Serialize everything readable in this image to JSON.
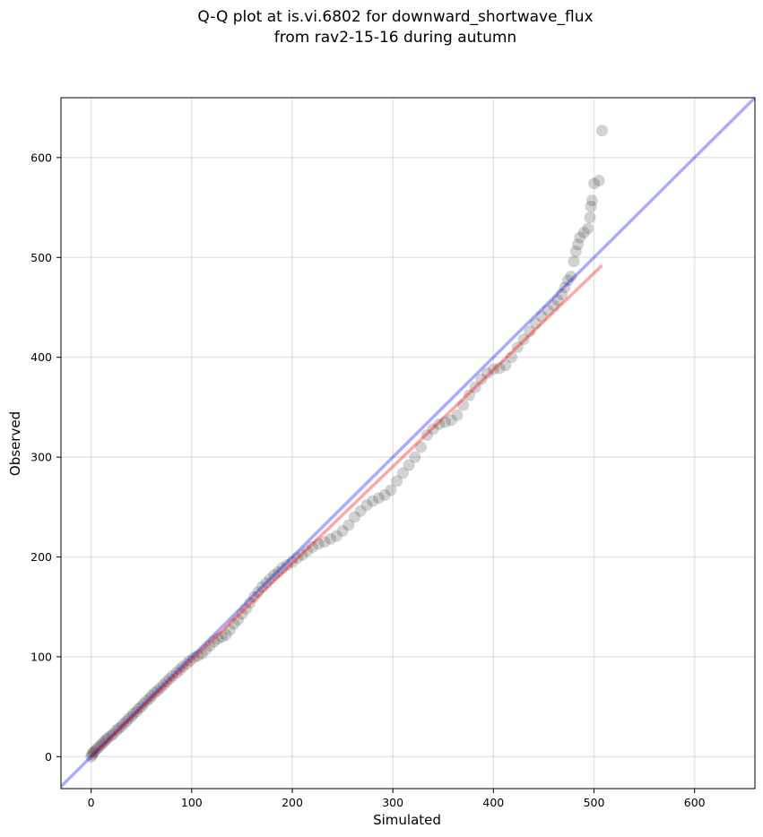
{
  "chart_data": {
    "type": "scatter",
    "title_lines": [
      "Q-Q plot at is.vi.6802 for downward_shortwave_flux",
      "from rav2-15-16 during autumn"
    ],
    "xlabel": "Simulated",
    "ylabel": "Observed",
    "xlim": [
      -30,
      660
    ],
    "ylim": [
      -32,
      660
    ],
    "xticks": [
      0,
      100,
      200,
      300,
      400,
      500,
      600
    ],
    "yticks": [
      0,
      100,
      200,
      300,
      400,
      500,
      600
    ],
    "grid": true,
    "colors": {
      "points": "#333333",
      "identity_line": "#0000ff",
      "fit_line": "#ff0000"
    },
    "identity_line": {
      "x": [
        -30,
        660
      ],
      "y": [
        -30,
        660
      ]
    },
    "fit_line": {
      "x": [
        0,
        508
      ],
      "y": [
        0,
        492
      ]
    },
    "points": [
      [
        0,
        0
      ],
      [
        1,
        2
      ],
      [
        2,
        4
      ],
      [
        3,
        5
      ],
      [
        5,
        7
      ],
      [
        7,
        9
      ],
      [
        9,
        11
      ],
      [
        11,
        13
      ],
      [
        13,
        15
      ],
      [
        15,
        17
      ],
      [
        17,
        19
      ],
      [
        20,
        21
      ],
      [
        22,
        23
      ],
      [
        25,
        26
      ],
      [
        27,
        28
      ],
      [
        30,
        30
      ],
      [
        32,
        33
      ],
      [
        35,
        35
      ],
      [
        37,
        38
      ],
      [
        40,
        40
      ],
      [
        42,
        43
      ],
      [
        45,
        45
      ],
      [
        47,
        48
      ],
      [
        50,
        50
      ],
      [
        52,
        53
      ],
      [
        55,
        56
      ],
      [
        58,
        58
      ],
      [
        60,
        61
      ],
      [
        63,
        64
      ],
      [
        66,
        66
      ],
      [
        69,
        69
      ],
      [
        72,
        72
      ],
      [
        75,
        75
      ],
      [
        78,
        78
      ],
      [
        81,
        81
      ],
      [
        85,
        84
      ],
      [
        88,
        87
      ],
      [
        91,
        90
      ],
      [
        95,
        93
      ],
      [
        98,
        96
      ],
      [
        102,
        99
      ],
      [
        106,
        101
      ],
      [
        110,
        103
      ],
      [
        114,
        107
      ],
      [
        118,
        111
      ],
      [
        122,
        115
      ],
      [
        126,
        118
      ],
      [
        130,
        120
      ],
      [
        134,
        122
      ],
      [
        138,
        127
      ],
      [
        142,
        133
      ],
      [
        146,
        137
      ],
      [
        150,
        143
      ],
      [
        154,
        148
      ],
      [
        158,
        154
      ],
      [
        162,
        160
      ],
      [
        166,
        165
      ],
      [
        170,
        170
      ],
      [
        174,
        174
      ],
      [
        178,
        178
      ],
      [
        182,
        182
      ],
      [
        186,
        185
      ],
      [
        190,
        189
      ],
      [
        195,
        192
      ],
      [
        200,
        195
      ],
      [
        205,
        199
      ],
      [
        210,
        202
      ],
      [
        215,
        206
      ],
      [
        220,
        210
      ],
      [
        226,
        213
      ],
      [
        232,
        215
      ],
      [
        238,
        218
      ],
      [
        244,
        221
      ],
      [
        250,
        226
      ],
      [
        256,
        232
      ],
      [
        262,
        240
      ],
      [
        268,
        246
      ],
      [
        274,
        252
      ],
      [
        280,
        256
      ],
      [
        286,
        259
      ],
      [
        292,
        262
      ],
      [
        298,
        267
      ],
      [
        304,
        276
      ],
      [
        310,
        284
      ],
      [
        316,
        292
      ],
      [
        322,
        300
      ],
      [
        328,
        310
      ],
      [
        334,
        322
      ],
      [
        340,
        328
      ],
      [
        346,
        333
      ],
      [
        352,
        335
      ],
      [
        358,
        337
      ],
      [
        364,
        342
      ],
      [
        370,
        352
      ],
      [
        376,
        362
      ],
      [
        382,
        370
      ],
      [
        388,
        378
      ],
      [
        394,
        384
      ],
      [
        400,
        388
      ],
      [
        406,
        389
      ],
      [
        412,
        392
      ],
      [
        418,
        400
      ],
      [
        424,
        410
      ],
      [
        430,
        418
      ],
      [
        436,
        426
      ],
      [
        442,
        434
      ],
      [
        448,
        441
      ],
      [
        454,
        447
      ],
      [
        460,
        452
      ],
      [
        464,
        457
      ],
      [
        468,
        463
      ],
      [
        471,
        470
      ],
      [
        474,
        477
      ],
      [
        477,
        481
      ],
      [
        480,
        496
      ],
      [
        482,
        506
      ],
      [
        484,
        513
      ],
      [
        486,
        520
      ],
      [
        490,
        525
      ],
      [
        494,
        529
      ],
      [
        496,
        540
      ],
      [
        497,
        551
      ],
      [
        498,
        557
      ],
      [
        500,
        574
      ],
      [
        505,
        577
      ],
      [
        508,
        627
      ]
    ]
  }
}
